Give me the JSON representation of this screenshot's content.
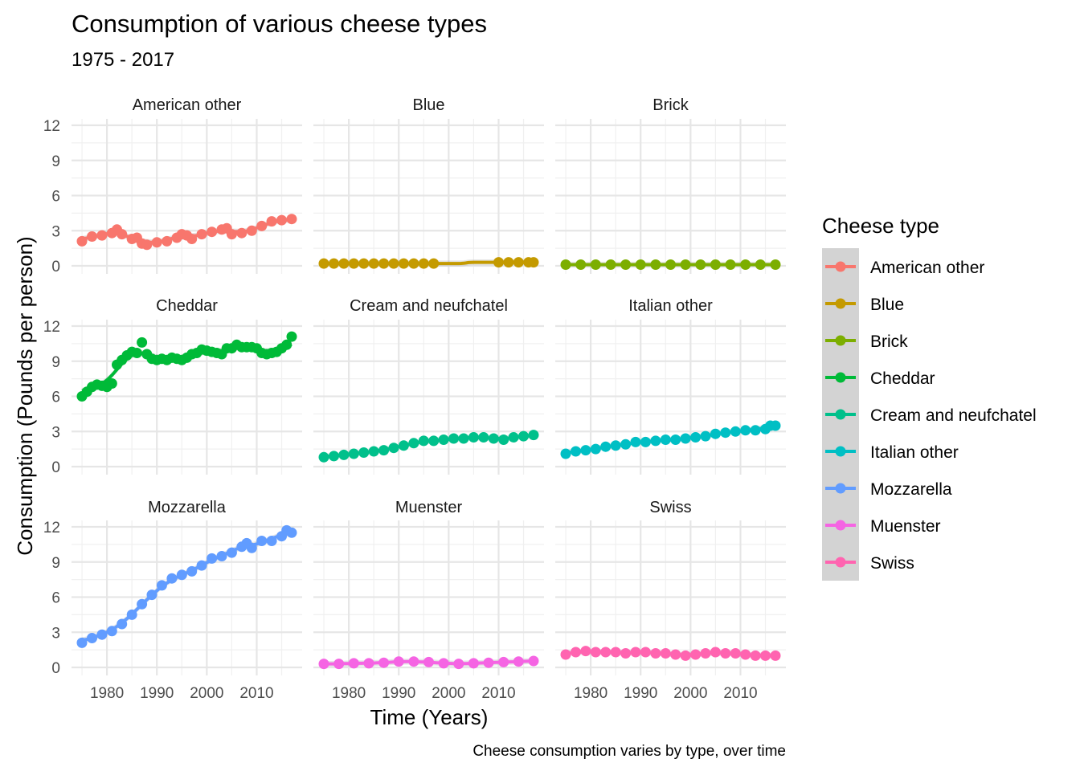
{
  "chart_data": {
    "type": "line",
    "title": "Consumption of various cheese types",
    "subtitle": "1975 - 2017",
    "xlabel": "Time (Years)",
    "ylabel": "Consumption (Pounds per person)",
    "caption": "Cheese consumption varies by type, over time",
    "legend_title": "Cheese type",
    "legend_position": "right",
    "grid": true,
    "facets": "3x3",
    "xlim": [
      1975,
      2017
    ],
    "ylim": [
      0,
      12
    ],
    "x_ticks": [
      1980,
      1990,
      2000,
      2010
    ],
    "y_ticks": [
      0,
      3,
      6,
      9,
      12
    ],
    "smooth_line": true,
    "series": [
      {
        "name": "American other",
        "color": "#F8766D",
        "x": [
          1975,
          1977,
          1979,
          1981,
          1982,
          1983,
          1985,
          1986,
          1987,
          1988,
          1990,
          1992,
          1994,
          1995,
          1996,
          1997,
          1999,
          2001,
          2003,
          2004,
          2005,
          2007,
          2009,
          2011,
          2013,
          2015,
          2017
        ],
        "values": [
          2.1,
          2.5,
          2.6,
          2.8,
          3.1,
          2.7,
          2.3,
          2.4,
          1.9,
          1.8,
          2.0,
          2.1,
          2.4,
          2.7,
          2.6,
          2.3,
          2.7,
          2.9,
          3.1,
          3.2,
          2.7,
          2.8,
          3.0,
          3.4,
          3.8,
          3.9,
          4.0
        ]
      },
      {
        "name": "Blue",
        "color": "#C49A00",
        "x": [
          1975,
          1977,
          1979,
          1981,
          1983,
          1985,
          1987,
          1989,
          1991,
          1993,
          1995,
          1997,
          2010,
          2012,
          2014,
          2016,
          2017
        ],
        "values": [
          0.2,
          0.2,
          0.2,
          0.2,
          0.2,
          0.2,
          0.2,
          0.2,
          0.2,
          0.2,
          0.2,
          0.2,
          0.3,
          0.3,
          0.3,
          0.3,
          0.3
        ]
      },
      {
        "name": "Brick",
        "color": "#7CAE00",
        "x": [
          1975,
          1978,
          1981,
          1984,
          1987,
          1990,
          1993,
          1996,
          1999,
          2002,
          2005,
          2008,
          2011,
          2014,
          2017
        ],
        "values": [
          0.1,
          0.1,
          0.1,
          0.1,
          0.1,
          0.1,
          0.1,
          0.1,
          0.1,
          0.1,
          0.1,
          0.1,
          0.1,
          0.1,
          0.1
        ]
      },
      {
        "name": "Cheddar",
        "color": "#00BA38",
        "x": [
          1975,
          1976,
          1977,
          1978,
          1979,
          1980,
          1981,
          1982,
          1983,
          1984,
          1985,
          1986,
          1987,
          1988,
          1989,
          1990,
          1991,
          1992,
          1993,
          1994,
          1995,
          1996,
          1997,
          1998,
          1999,
          2000,
          2001,
          2002,
          2003,
          2004,
          2005,
          2006,
          2007,
          2008,
          2009,
          2010,
          2011,
          2012,
          2013,
          2014,
          2015,
          2016,
          2017
        ],
        "values": [
          6.0,
          6.4,
          6.8,
          7.0,
          6.9,
          6.8,
          7.1,
          8.7,
          9.1,
          9.5,
          9.8,
          9.7,
          10.6,
          9.6,
          9.2,
          9.1,
          9.2,
          9.1,
          9.3,
          9.2,
          9.1,
          9.3,
          9.6,
          9.7,
          10.0,
          9.9,
          9.8,
          9.7,
          9.6,
          10.1,
          10.1,
          10.4,
          10.2,
          10.2,
          10.2,
          10.1,
          9.7,
          9.6,
          9.7,
          9.8,
          10.1,
          10.4,
          11.1
        ]
      },
      {
        "name": "Cream and neufchatel",
        "color": "#00C08B",
        "x": [
          1975,
          1977,
          1979,
          1981,
          1983,
          1985,
          1987,
          1989,
          1991,
          1993,
          1995,
          1997,
          1999,
          2001,
          2003,
          2005,
          2007,
          2009,
          2011,
          2013,
          2015,
          2017
        ],
        "values": [
          0.8,
          0.9,
          1.0,
          1.1,
          1.2,
          1.3,
          1.4,
          1.6,
          1.8,
          2.0,
          2.2,
          2.2,
          2.3,
          2.4,
          2.4,
          2.5,
          2.5,
          2.4,
          2.3,
          2.5,
          2.6,
          2.7
        ]
      },
      {
        "name": "Italian other",
        "color": "#00BFC4",
        "x": [
          1975,
          1977,
          1979,
          1981,
          1983,
          1985,
          1987,
          1989,
          1991,
          1993,
          1995,
          1997,
          1999,
          2001,
          2003,
          2005,
          2007,
          2009,
          2011,
          2013,
          2015,
          2016,
          2017
        ],
        "values": [
          1.1,
          1.3,
          1.4,
          1.5,
          1.7,
          1.8,
          1.9,
          2.1,
          2.1,
          2.2,
          2.3,
          2.3,
          2.4,
          2.5,
          2.6,
          2.8,
          2.9,
          3.0,
          3.1,
          3.1,
          3.2,
          3.5,
          3.5
        ]
      },
      {
        "name": "Mozzarella",
        "color": "#619CFF",
        "x": [
          1975,
          1977,
          1979,
          1981,
          1983,
          1985,
          1987,
          1989,
          1991,
          1993,
          1995,
          1997,
          1999,
          2001,
          2003,
          2005,
          2007,
          2008,
          2009,
          2011,
          2013,
          2015,
          2016,
          2017
        ],
        "values": [
          2.1,
          2.5,
          2.8,
          3.1,
          3.7,
          4.5,
          5.4,
          6.2,
          7.0,
          7.6,
          7.9,
          8.2,
          8.7,
          9.3,
          9.5,
          9.8,
          10.3,
          10.6,
          10.2,
          10.8,
          10.8,
          11.2,
          11.7,
          11.5
        ]
      },
      {
        "name": "Muenster",
        "color": "#F564E3",
        "x": [
          1975,
          1978,
          1981,
          1984,
          1987,
          1990,
          1993,
          1996,
          1999,
          2002,
          2005,
          2008,
          2011,
          2014,
          2017
        ],
        "values": [
          0.3,
          0.3,
          0.35,
          0.35,
          0.4,
          0.5,
          0.5,
          0.45,
          0.35,
          0.3,
          0.35,
          0.4,
          0.45,
          0.5,
          0.55
        ]
      },
      {
        "name": "Swiss",
        "color": "#FF64B0",
        "x": [
          1975,
          1977,
          1979,
          1981,
          1983,
          1985,
          1987,
          1989,
          1991,
          1993,
          1995,
          1997,
          1999,
          2001,
          2003,
          2005,
          2007,
          2009,
          2011,
          2013,
          2015,
          2017
        ],
        "values": [
          1.1,
          1.3,
          1.4,
          1.3,
          1.3,
          1.3,
          1.2,
          1.3,
          1.3,
          1.2,
          1.2,
          1.1,
          1.0,
          1.1,
          1.2,
          1.3,
          1.2,
          1.2,
          1.1,
          1.0,
          1.0,
          1.0
        ]
      }
    ]
  }
}
